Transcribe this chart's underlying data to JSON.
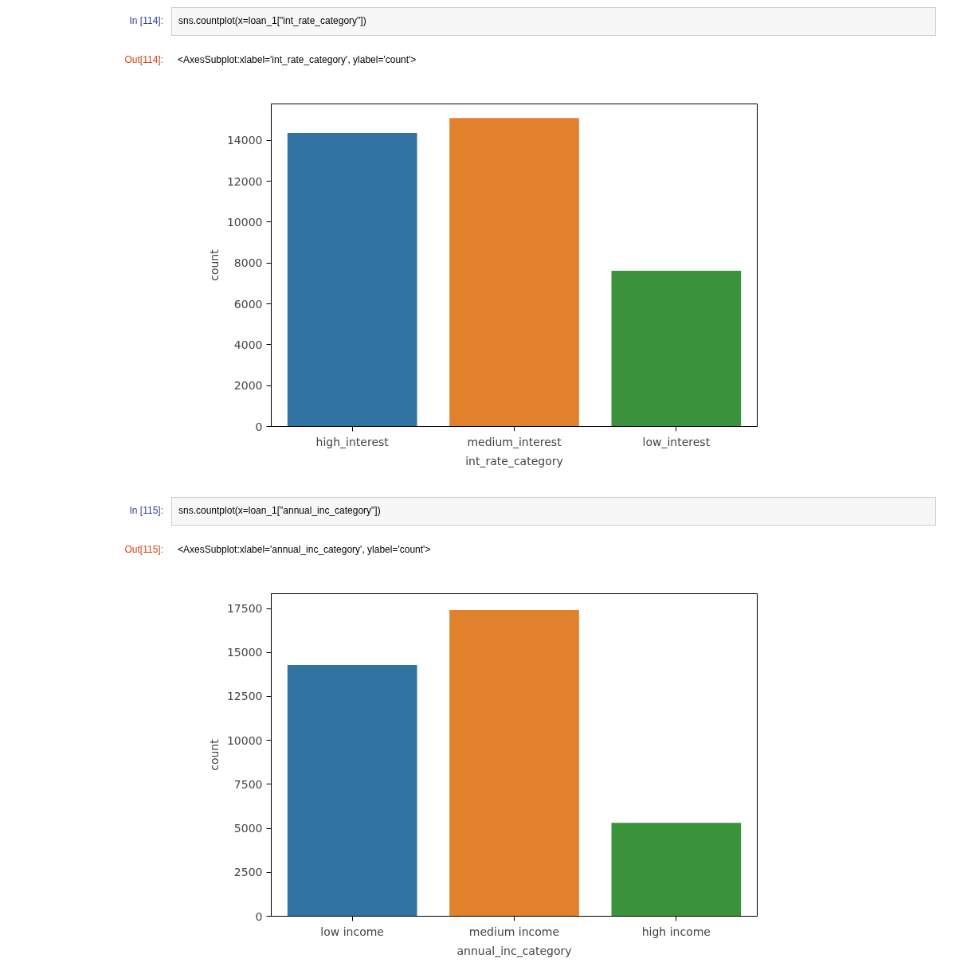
{
  "chart_data": [
    {
      "type": "bar",
      "xlabel": "int_rate_category",
      "ylabel": "count",
      "categories": [
        "high_interest",
        "medium_interest",
        "low_interest"
      ],
      "values": [
        14360,
        15090,
        7620
      ],
      "colors": [
        "#3274a1",
        "#e1812c",
        "#3a923a"
      ],
      "ylim": [
        0,
        15780
      ],
      "yticks": [
        0,
        2000,
        4000,
        6000,
        8000,
        10000,
        12000,
        14000
      ],
      "annotations": [
        "In [114]:",
        "sns.countplot(x=loan_1[\"int_rate_category\"])",
        "Out[114]:",
        "<AxesSubplot:xlabel='int_rate_category', ylabel='count'>"
      ]
    },
    {
      "type": "bar",
      "xlabel": "annual_inc_category",
      "ylabel": "count",
      "categories": [
        "low income",
        "medium income",
        "high income"
      ],
      "values": [
        14290,
        17410,
        5310
      ],
      "colors": [
        "#3274a1",
        "#e1812c",
        "#3a923a"
      ],
      "ylim": [
        0,
        18340
      ],
      "yticks": [
        0,
        2500,
        5000,
        7500,
        10000,
        12500,
        15000,
        17500
      ],
      "annotations": [
        "In [115]:",
        "sns.countplot(x=loan_1[\"annual_inc_category\"])",
        "Out[115]:",
        "<AxesSubplot:xlabel='annual_inc_category', ylabel='count'>"
      ]
    }
  ]
}
